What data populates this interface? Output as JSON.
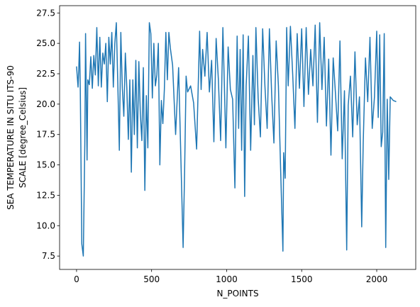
{
  "chart_data": {
    "type": "line",
    "xlabel": "N_POINTS",
    "ylabel": [
      "SEA TEMPERATURE IN SITU ITS-90",
      "SCALE [degree_Celsius]"
    ],
    "x": [
      0,
      10,
      15,
      20,
      25,
      35,
      45,
      55,
      60,
      70,
      75,
      85,
      95,
      105,
      115,
      125,
      135,
      145,
      155,
      165,
      175,
      185,
      195,
      205,
      215,
      225,
      235,
      245,
      255,
      265,
      275,
      285,
      295,
      305,
      315,
      325,
      335,
      345,
      355,
      365,
      375,
      385,
      395,
      405,
      415,
      425,
      435,
      445,
      455,
      465,
      475,
      485,
      495,
      505,
      515,
      525,
      535,
      545,
      555,
      565,
      575,
      585,
      595,
      605,
      615,
      625,
      640,
      660,
      680,
      700,
      710,
      720,
      730,
      740,
      760,
      780,
      800,
      820,
      830,
      840,
      855,
      870,
      885,
      900,
      915,
      930,
      945,
      960,
      975,
      985,
      995,
      1010,
      1025,
      1040,
      1055,
      1070,
      1080,
      1090,
      1100,
      1110,
      1120,
      1130,
      1145,
      1160,
      1175,
      1185,
      1195,
      1210,
      1225,
      1240,
      1255,
      1270,
      1285,
      1300,
      1315,
      1330,
      1345,
      1360,
      1375,
      1380,
      1390,
      1400,
      1410,
      1425,
      1440,
      1455,
      1470,
      1485,
      1500,
      1515,
      1530,
      1545,
      1560,
      1575,
      1590,
      1605,
      1620,
      1635,
      1650,
      1665,
      1680,
      1695,
      1710,
      1725,
      1740,
      1755,
      1770,
      1785,
      1800,
      1810,
      1825,
      1840,
      1855,
      1870,
      1885,
      1900,
      1910,
      1925,
      1940,
      1955,
      1970,
      1985,
      2000,
      2010,
      2020,
      2030,
      2040,
      2050,
      2060,
      2070,
      2080,
      2090,
      2110,
      2130
    ],
    "series": [
      {
        "name": "temperature",
        "color": "#1f77b4",
        "values": [
          23.1,
          21.4,
          23,
          25.1,
          21.1,
          8.5,
          7.5,
          16.7,
          25.8,
          15.4,
          22,
          21.6,
          23.9,
          21.3,
          24,
          22.4,
          26.3,
          21.5,
          25.5,
          21.4,
          24.2,
          23.3,
          25,
          20.2,
          25.5,
          23.3,
          25.9,
          21.4,
          25,
          26.7,
          21.6,
          16.2,
          25.9,
          21.3,
          19,
          24.2,
          21.3,
          17.1,
          22,
          14.4,
          22,
          17.5,
          23.6,
          16.4,
          23.5,
          19.2,
          17,
          23,
          12.9,
          20.7,
          16.4,
          26.7,
          25.8,
          20.5,
          25,
          21.5,
          22.4,
          25,
          15,
          20.3,
          18.4,
          21.2,
          25.9,
          22,
          25.9,
          24.6,
          23.2,
          17.5,
          23,
          13.1,
          8.2,
          14.5,
          22.3,
          21,
          21.5,
          20.1,
          16.3,
          26,
          21.2,
          24.5,
          22.3,
          25.9,
          21,
          23.6,
          16.9,
          25.4,
          22,
          17,
          26.3,
          21.5,
          16.4,
          24.7,
          21.2,
          20.4,
          13.1,
          25.6,
          18,
          24.5,
          16.2,
          25.7,
          12.4,
          21.5,
          25.6,
          16.2,
          24,
          18.3,
          26.3,
          20.5,
          17.3,
          26.2,
          21.5,
          18,
          26.2,
          20.8,
          16.8,
          25.2,
          21.5,
          14.5,
          7.9,
          16,
          13.9,
          26.3,
          21.5,
          26.4,
          22.5,
          18,
          25.8,
          21.3,
          26.2,
          19.8,
          26.3,
          20.8,
          24.5,
          21.5,
          26.5,
          18.5,
          26.7,
          21.2,
          25.5,
          18.2,
          23.7,
          15.8,
          23.8,
          20.9,
          17.8,
          25.2,
          15.5,
          21.1,
          8,
          19.9,
          22.3,
          17.3,
          24.3,
          18.3,
          20.6,
          9.9,
          16.8,
          23.8,
          20.2,
          25.5,
          18,
          20.6,
          26,
          18.9,
          25.7,
          16.5,
          17.7,
          25.8,
          8.2,
          20.4,
          13.8,
          20.6,
          20.3,
          20.2
        ]
      }
    ],
    "xlim": [
      -113,
      2260
    ],
    "ylim": [
      6.4,
      28.1
    ],
    "xticks": [
      0,
      500,
      1000,
      1500,
      2000
    ],
    "yticks": [
      7.5,
      {
        "value": 10,
        "label": "10.0"
      },
      12.5,
      {
        "value": 15,
        "label": "15.0"
      },
      17.5,
      {
        "value": 20,
        "label": "20.0"
      },
      22.5,
      {
        "value": 25,
        "label": "25.0"
      },
      27.5
    ],
    "grid": false
  }
}
